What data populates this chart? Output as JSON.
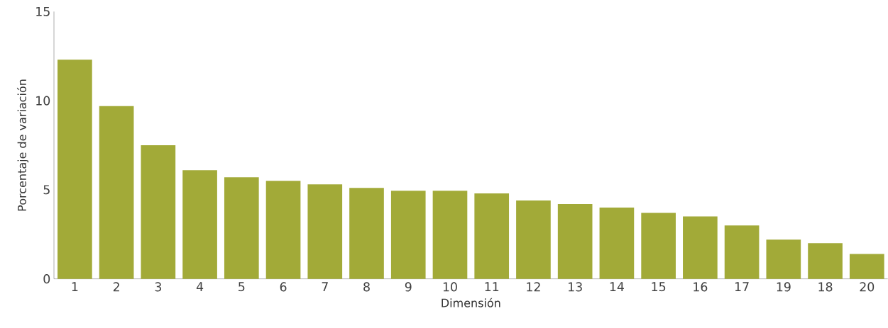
{
  "chart_data": {
    "type": "bar",
    "xlabel": "Dimensión",
    "ylabel": "Porcentaje de variación",
    "categories": [
      "1",
      "2",
      "3",
      "4",
      "5",
      "6",
      "7",
      "8",
      "9",
      "10",
      "11",
      "12",
      "13",
      "14",
      "15",
      "16",
      "17",
      "19",
      "18",
      "20"
    ],
    "values": [
      12.3,
      9.7,
      7.5,
      6.1,
      5.7,
      5.5,
      5.3,
      5.1,
      4.95,
      4.95,
      4.8,
      4.4,
      4.2,
      4.0,
      3.7,
      3.5,
      3.0,
      2.2,
      2.0,
      1.4
    ],
    "color": "#a2aa38",
    "ylim": [
      0,
      15
    ],
    "yticks": [
      0,
      5,
      10,
      15
    ]
  }
}
